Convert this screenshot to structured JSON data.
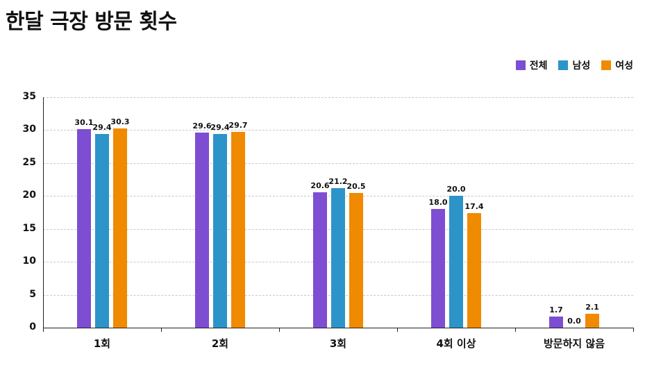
{
  "title": "한달 극장 방문 횟수",
  "chart_data": {
    "type": "bar",
    "title": "한달 극장 방문 횟수",
    "categories": [
      "1회",
      "2회",
      "3회",
      "4회 이상",
      "방문하지 않음"
    ],
    "series": [
      {
        "name": "전체",
        "color": "#7d4ed2",
        "values": [
          30.1,
          29.6,
          20.6,
          18.0,
          1.7
        ]
      },
      {
        "name": "남성",
        "color": "#2d94c9",
        "values": [
          29.4,
          29.4,
          21.2,
          20.0,
          0.0
        ]
      },
      {
        "name": "여성",
        "color": "#f08a00",
        "values": [
          30.3,
          29.7,
          20.5,
          17.4,
          2.1
        ]
      }
    ],
    "xlabel": "",
    "ylabel": "",
    "ylim": [
      0,
      35
    ],
    "ytick_step": 5,
    "grid": "dashed-horizontal",
    "legend_position": "top-right",
    "value_labels": true
  }
}
